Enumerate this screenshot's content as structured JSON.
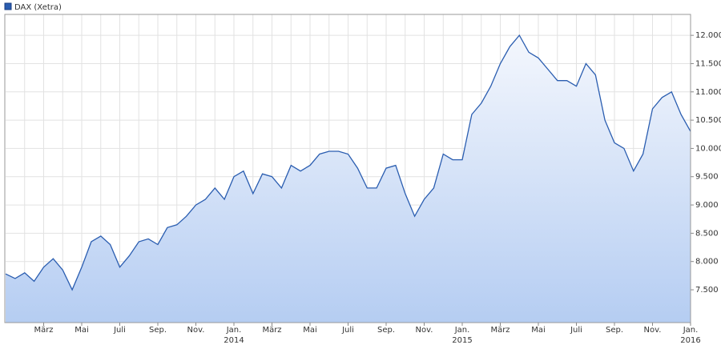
{
  "chart_data": {
    "type": "area",
    "series": [
      {
        "name": "DAX (Xetra)",
        "color": "#2a5db0",
        "values": [
          7780,
          7700,
          7800,
          7650,
          7900,
          8050,
          7850,
          7500,
          7900,
          8350,
          8450,
          8300,
          7900,
          8100,
          8350,
          8400,
          8300,
          8600,
          8650,
          8800,
          9000,
          9100,
          9300,
          9100,
          9500,
          9600,
          9200,
          9550,
          9500,
          9300,
          9700,
          9600,
          9700,
          9900,
          9950,
          9950,
          9900,
          9650,
          9300,
          9300,
          9650,
          9700,
          9200,
          8800,
          9100,
          9300,
          9900,
          9800,
          9800,
          10600,
          10800,
          11100,
          11500,
          11800,
          12000,
          11700,
          11600,
          11400,
          11200,
          11200,
          11100,
          11500,
          11300,
          10500,
          10100,
          10000,
          9600,
          9900,
          10700,
          10900,
          11000,
          10600,
          10300
        ]
      }
    ],
    "xticks": [
      {
        "label": "März"
      },
      {
        "label": "Mai"
      },
      {
        "label": "Juli"
      },
      {
        "label": "Sep."
      },
      {
        "label": "Nov."
      },
      {
        "label": "Jan.",
        "sublabel": "2014"
      },
      {
        "label": "März"
      },
      {
        "label": "Mai"
      },
      {
        "label": "Juli"
      },
      {
        "label": "Sep."
      },
      {
        "label": "Nov."
      },
      {
        "label": "Jan.",
        "sublabel": "2015"
      },
      {
        "label": "März"
      },
      {
        "label": "Mai"
      },
      {
        "label": "Juli"
      },
      {
        "label": "Sep."
      },
      {
        "label": "Nov."
      },
      {
        "label": "Jan.",
        "sublabel": "2016"
      }
    ],
    "ylim": [
      6920,
      12370
    ],
    "yticks": [
      {
        "value": 7500,
        "label": "7.500"
      },
      {
        "value": 8000,
        "label": "8.000"
      },
      {
        "value": 8500,
        "label": "8.500"
      },
      {
        "value": 9000,
        "label": "9.000"
      },
      {
        "value": 9500,
        "label": "9.500"
      },
      {
        "value": 10000,
        "label": "10.000"
      },
      {
        "value": 10500,
        "label": "10.500"
      },
      {
        "value": 11000,
        "label": "11.000"
      },
      {
        "value": 11500,
        "label": "11.500"
      },
      {
        "value": 12000,
        "label": "12.000"
      }
    ],
    "grid": true
  }
}
